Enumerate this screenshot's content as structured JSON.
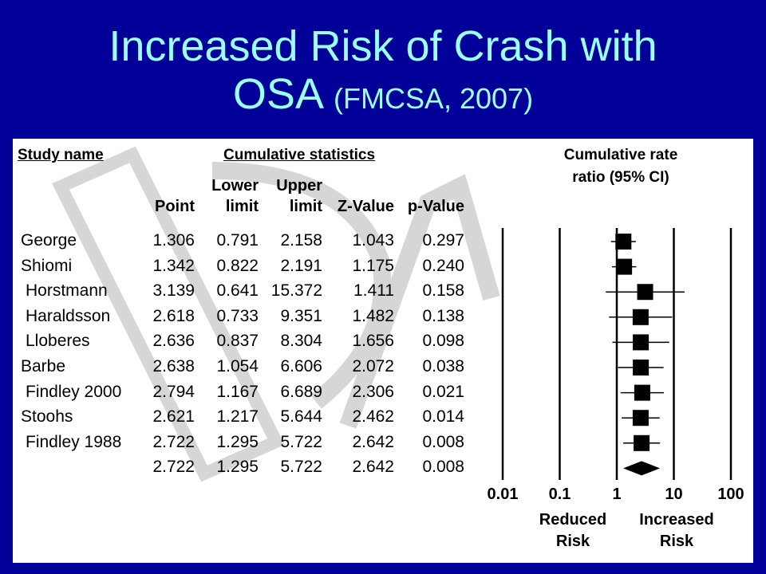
{
  "slide": {
    "title_main": "Increased Risk of Crash with",
    "title_line2": "OSA",
    "title_cite": "(FMCSA, 2007)"
  },
  "table": {
    "study_header": "Study name",
    "group_header": "Cumulative statistics",
    "columns": [
      {
        "line1": "",
        "line2": "Point"
      },
      {
        "line1": "Lower",
        "line2": "limit"
      },
      {
        "line1": "Upper",
        "line2": "limit"
      },
      {
        "line1": "",
        "line2": "Z-Value"
      },
      {
        "line1": "",
        "line2": "p-Value"
      }
    ],
    "rows": [
      {
        "study": "George",
        "point": "1.306",
        "lower": "0.791",
        "upper": "2.158",
        "z": "1.043",
        "p": "0.297"
      },
      {
        "study": "Shiomi",
        "point": "1.342",
        "lower": "0.822",
        "upper": "2.191",
        "z": "1.175",
        "p": "0.240"
      },
      {
        "study": "Horstmann",
        "point": "3.139",
        "lower": "0.641",
        "upper": "15.372",
        "z": "1.411",
        "p": "0.158"
      },
      {
        "study": "Haraldsson",
        "point": "2.618",
        "lower": "0.733",
        "upper": "9.351",
        "z": "1.482",
        "p": "0.138"
      },
      {
        "study": "Lloberes",
        "point": "2.636",
        "lower": "0.837",
        "upper": "8.304",
        "z": "1.656",
        "p": "0.098"
      },
      {
        "study": "Barbe",
        "point": "2.638",
        "lower": "1.054",
        "upper": "6.606",
        "z": "2.072",
        "p": "0.038"
      },
      {
        "study": "Findley 2000",
        "point": "2.794",
        "lower": "1.167",
        "upper": "6.689",
        "z": "2.306",
        "p": "0.021"
      },
      {
        "study": "Stoohs",
        "point": "2.621",
        "lower": "1.217",
        "upper": "5.644",
        "z": "2.462",
        "p": "0.014"
      },
      {
        "study": "Findley 1988",
        "point": "2.722",
        "lower": "1.295",
        "upper": "5.722",
        "z": "2.642",
        "p": "0.008"
      },
      {
        "study": "",
        "point": "2.722",
        "lower": "1.295",
        "upper": "5.722",
        "z": "2.642",
        "p": "0.008"
      }
    ]
  },
  "chart_data": {
    "type": "forest",
    "title": "Cumulative rate ratio (95% CI)",
    "x_scale": "log",
    "xlim": [
      0.01,
      100
    ],
    "x_ticks": [
      {
        "value": 0.01,
        "label": "0.01"
      },
      {
        "value": 0.1,
        "label": "0.1"
      },
      {
        "value": 1,
        "label": "1"
      },
      {
        "value": 10,
        "label": "10"
      },
      {
        "value": 100,
        "label": "100"
      }
    ],
    "left_label": [
      "Reduced",
      "Risk"
    ],
    "right_label": [
      "Increased",
      "Risk"
    ],
    "points": [
      {
        "study": "George",
        "estimate": 1.306,
        "lower": 0.791,
        "upper": 2.158
      },
      {
        "study": "Shiomi",
        "estimate": 1.342,
        "lower": 0.822,
        "upper": 2.191
      },
      {
        "study": "Horstmann",
        "estimate": 3.139,
        "lower": 0.641,
        "upper": 15.372
      },
      {
        "study": "Haraldsson",
        "estimate": 2.618,
        "lower": 0.733,
        "upper": 9.351
      },
      {
        "study": "Lloberes",
        "estimate": 2.636,
        "lower": 0.837,
        "upper": 8.304
      },
      {
        "study": "Barbe",
        "estimate": 2.638,
        "lower": 1.054,
        "upper": 6.606
      },
      {
        "study": "Findley 2000",
        "estimate": 2.794,
        "lower": 1.167,
        "upper": 6.689
      },
      {
        "study": "Stoohs",
        "estimate": 2.621,
        "lower": 1.217,
        "upper": 5.644
      },
      {
        "study": "Findley 1988",
        "estimate": 2.722,
        "lower": 1.295,
        "upper": 5.722
      }
    ],
    "summary": {
      "estimate": 2.722,
      "lower": 1.295,
      "upper": 5.722
    }
  }
}
